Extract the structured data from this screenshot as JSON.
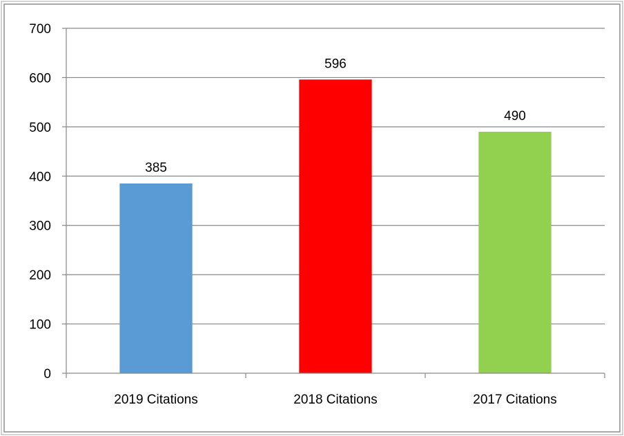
{
  "chart_data": {
    "type": "bar",
    "categories": [
      "2019 Citations",
      "2018 Citations",
      "2017 Citations"
    ],
    "values": [
      385,
      596,
      490
    ],
    "colors": [
      "#5b9bd5",
      "#ff0000",
      "#92d050"
    ],
    "ylim": [
      0,
      700
    ],
    "yticks": [
      0,
      100,
      200,
      300,
      400,
      500,
      600,
      700
    ],
    "grid": true,
    "data_labels": true,
    "legend": "none",
    "title": "",
    "xlabel": "",
    "ylabel": ""
  }
}
